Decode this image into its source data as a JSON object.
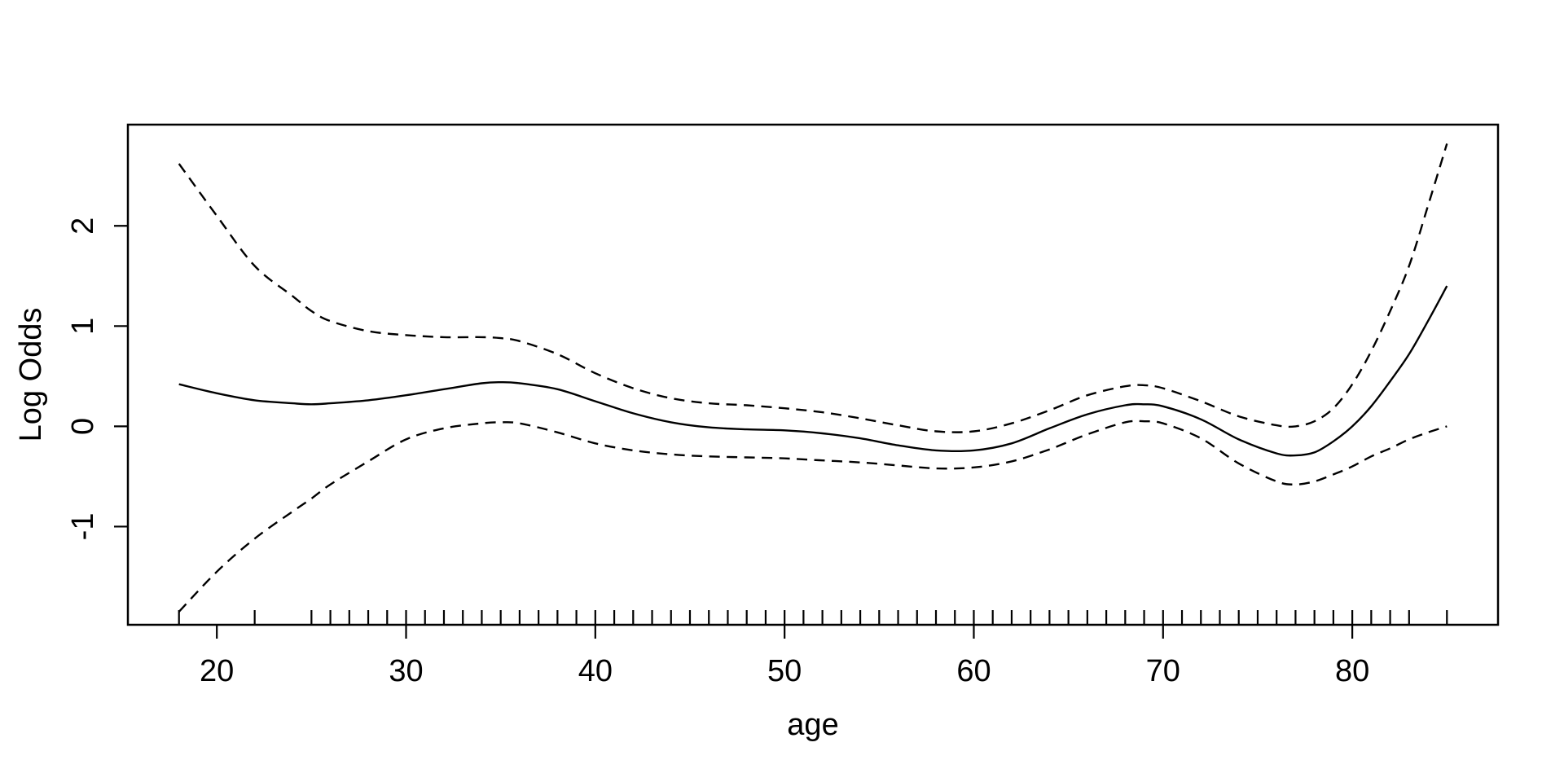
{
  "figure": {
    "background_color": "#ffffff",
    "foreground_color": "#000000"
  },
  "chart_data": {
    "type": "line",
    "title": "",
    "xlabel": "age",
    "ylabel": "Log Odds",
    "grid": false,
    "legend": "none",
    "xlim": [
      15.3,
      87.7
    ],
    "ylim": [
      -1.98,
      3.01
    ],
    "x_ticks": [
      20,
      30,
      40,
      50,
      60,
      70,
      80
    ],
    "x_tick_labels": [
      "20",
      "30",
      "40",
      "50",
      "60",
      "70",
      "80"
    ],
    "y_ticks": [
      -1,
      0,
      1,
      2
    ],
    "y_tick_labels": [
      "-1",
      "0",
      "1",
      "2"
    ],
    "x": [
      18,
      20,
      22,
      24,
      25,
      26,
      28,
      30,
      32,
      34,
      35,
      36,
      38,
      40,
      42,
      44,
      46,
      48,
      50,
      52,
      54,
      56,
      58,
      60,
      62,
      64,
      66,
      68,
      69,
      70,
      72,
      74,
      76,
      77,
      78,
      79,
      80,
      81,
      82,
      83,
      84,
      85
    ],
    "series": [
      {
        "name": "fit",
        "style": "solid",
        "color": "#000000",
        "values": [
          0.42,
          0.33,
          0.26,
          0.23,
          0.22,
          0.23,
          0.26,
          0.31,
          0.37,
          0.43,
          0.44,
          0.43,
          0.37,
          0.25,
          0.13,
          0.04,
          -0.01,
          -0.03,
          -0.04,
          -0.07,
          -0.12,
          -0.19,
          -0.24,
          -0.24,
          -0.17,
          -0.02,
          0.12,
          0.21,
          0.22,
          0.2,
          0.07,
          -0.13,
          -0.27,
          -0.29,
          -0.26,
          -0.15,
          0.0,
          0.2,
          0.45,
          0.72,
          1.05,
          1.4
        ]
      },
      {
        "name": "upper_band",
        "style": "dashed",
        "color": "#000000",
        "values": [
          2.62,
          2.1,
          1.6,
          1.3,
          1.15,
          1.05,
          0.95,
          0.91,
          0.89,
          0.89,
          0.88,
          0.85,
          0.72,
          0.53,
          0.38,
          0.28,
          0.23,
          0.21,
          0.18,
          0.14,
          0.08,
          0.01,
          -0.05,
          -0.05,
          0.03,
          0.16,
          0.31,
          0.4,
          0.41,
          0.38,
          0.25,
          0.1,
          0.01,
          0.0,
          0.05,
          0.18,
          0.42,
          0.75,
          1.15,
          1.6,
          2.2,
          2.82
        ]
      },
      {
        "name": "lower_band",
        "style": "dashed",
        "color": "#000000",
        "values": [
          -1.85,
          -1.45,
          -1.12,
          -0.85,
          -0.72,
          -0.58,
          -0.35,
          -0.13,
          -0.02,
          0.03,
          0.04,
          0.03,
          -0.06,
          -0.17,
          -0.24,
          -0.28,
          -0.3,
          -0.31,
          -0.32,
          -0.34,
          -0.36,
          -0.39,
          -0.42,
          -0.41,
          -0.35,
          -0.23,
          -0.08,
          0.04,
          0.05,
          0.03,
          -0.12,
          -0.37,
          -0.55,
          -0.58,
          -0.55,
          -0.48,
          -0.4,
          -0.3,
          -0.22,
          -0.13,
          -0.06,
          0.0
        ]
      }
    ],
    "rug_ages": [
      18,
      22,
      25,
      26,
      27,
      28,
      29,
      30,
      31,
      32,
      33,
      34,
      35,
      36,
      37,
      38,
      39,
      40,
      41,
      42,
      43,
      44,
      45,
      46,
      47,
      48,
      49,
      50,
      51,
      52,
      53,
      54,
      55,
      56,
      57,
      58,
      59,
      60,
      61,
      62,
      63,
      64,
      65,
      66,
      67,
      68,
      69,
      70,
      71,
      72,
      73,
      74,
      75,
      76,
      77,
      78,
      79,
      80,
      81,
      82,
      83,
      85
    ]
  }
}
